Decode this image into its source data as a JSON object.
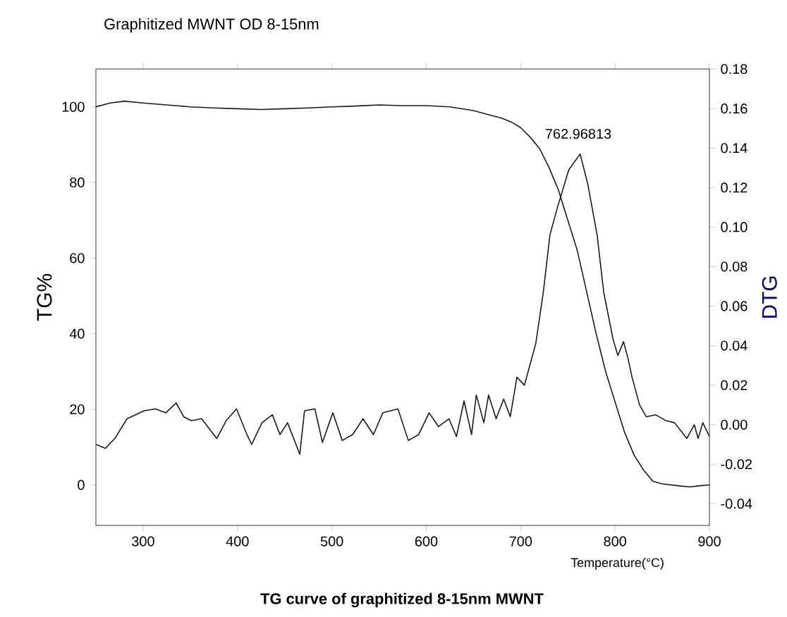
{
  "chart_data": {
    "type": "line",
    "title": "Graphitized MWNT OD 8-15nm",
    "xlabel": "Temperature(°C)",
    "ylabel": "TG%",
    "y2label": "DTG",
    "annotations": [
      "762.96813",
      "TG curve of graphitized 8-15nm MWNT"
    ],
    "xlim": [
      250,
      900
    ],
    "xticks": [
      300,
      400,
      500,
      600,
      700,
      800,
      900
    ],
    "ylim": [
      -10.7,
      110
    ],
    "yticks": [
      0,
      20,
      40,
      60,
      80,
      100
    ],
    "y2lim": [
      -0.051,
      0.18
    ],
    "y2ticks": [
      {
        "value": -0.04,
        "label": "-0.04"
      },
      {
        "value": -0.02,
        "label": "-0.02"
      },
      {
        "value": 0,
        "label": "0.00"
      },
      {
        "value": 0.02,
        "label": "0.02"
      },
      {
        "value": 0.04,
        "label": "0.04"
      },
      {
        "value": 0.06,
        "label": "0.06"
      },
      {
        "value": 0.08,
        "label": "0.08"
      },
      {
        "value": 0.1,
        "label": "0.10"
      },
      {
        "value": 0.12,
        "label": "0.12"
      },
      {
        "value": 0.14,
        "label": "0.14"
      },
      {
        "value": 0.16,
        "label": "0.16"
      },
      {
        "value": 0.18,
        "label": "0.18"
      }
    ],
    "grid": false,
    "legend": false,
    "line_style": "solid",
    "series": [
      {
        "color": "#1a1a1a",
        "x": [
          250,
          265,
          280,
          300,
          325,
          350,
          375,
          400,
          425,
          450,
          475,
          500,
          525,
          550,
          575,
          600,
          625,
          650,
          665,
          680,
          690,
          700,
          710,
          720,
          730,
          740,
          750,
          760,
          770,
          780,
          790,
          800,
          810,
          820,
          830,
          840,
          850,
          860,
          870,
          880,
          890,
          900
        ],
        "values": [
          100,
          101,
          101.5,
          101,
          100.5,
          100,
          99.7,
          99.5,
          99.3,
          99.5,
          99.7,
          100,
          100.2,
          100.5,
          100.3,
          100.3,
          100,
          99,
          98,
          97,
          96,
          94.5,
          92,
          89,
          84,
          78,
          70,
          62,
          51,
          40,
          30,
          22,
          14,
          8,
          4,
          1,
          0.3,
          0,
          -0.3,
          -0.5,
          -0.2,
          0
        ]
      },
      {
        "color": "#1a1a1a",
        "axis": "y2",
        "x": [
          250,
          260,
          270,
          283,
          301,
          313,
          324,
          335,
          343,
          351,
          362,
          378,
          388,
          399,
          410,
          415,
          426,
          437,
          445,
          453,
          466,
          471,
          482,
          490,
          501,
          511,
          522,
          533,
          544,
          554,
          570,
          581,
          592,
          603,
          613,
          624,
          632,
          640,
          648,
          653,
          661,
          666,
          674,
          682,
          689,
          696,
          704,
          712,
          716,
          724,
          731,
          739,
          751,
          763,
          771,
          781,
          788,
          798,
          803,
          809,
          814,
          818,
          826,
          833,
          843,
          854,
          863,
          876,
          884,
          888,
          893,
          900
        ],
        "values": [
          -0.01,
          -0.012,
          -0.007,
          0.003,
          0.007,
          0.008,
          0.006,
          0.011,
          0.004,
          0.002,
          0.003,
          -0.007,
          0.002,
          0.008,
          -0.005,
          -0.01,
          0.001,
          0.005,
          -0.005,
          0.001,
          -0.015,
          0.007,
          0.008,
          -0.009,
          0.006,
          -0.008,
          -0.005,
          0.003,
          -0.005,
          0.006,
          0.008,
          -0.008,
          -0.005,
          0.006,
          -0.001,
          0.003,
          -0.006,
          0.012,
          -0.005,
          0.015,
          0.001,
          0.015,
          0.003,
          0.013,
          0.004,
          0.024,
          0.02,
          0.034,
          0.041,
          0.067,
          0.096,
          0.11,
          0.129,
          0.137,
          0.122,
          0.096,
          0.067,
          0.043,
          0.035,
          0.042,
          0.033,
          0.024,
          0.01,
          0.004,
          0.005,
          0.002,
          0.001,
          -0.007,
          0,
          -0.007,
          0.001,
          -0.006
        ]
      }
    ]
  }
}
